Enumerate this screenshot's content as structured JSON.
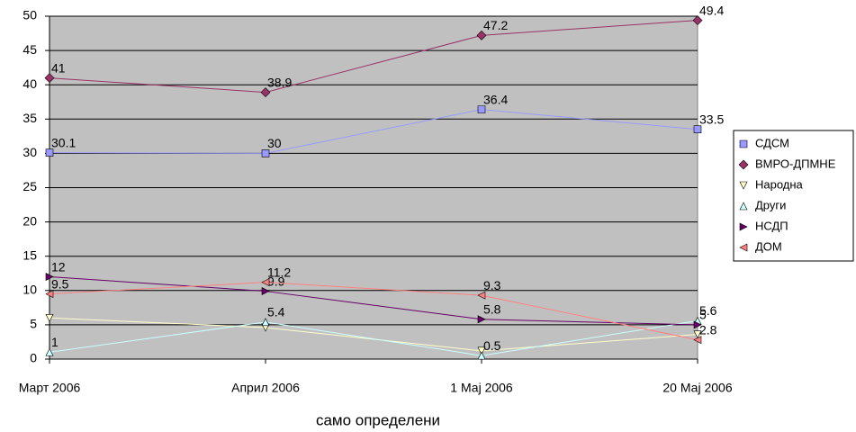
{
  "chart_data": {
    "type": "line",
    "x_label": "само определени",
    "categories": [
      "Март 2006",
      "Април 2006",
      "1 Мај 2006",
      "20 Мај 2006"
    ],
    "ylim": [
      0,
      50
    ],
    "yticks": [
      0,
      5,
      10,
      15,
      20,
      25,
      30,
      35,
      40,
      45,
      50
    ],
    "grid": true,
    "plot_background": "#c0c0c0",
    "legend": "right",
    "series": [
      {
        "name": "СДСМ",
        "color": "#9999ff",
        "marker": "square",
        "show_labels": true,
        "values": [
          30.1,
          30,
          36.4,
          33.5
        ]
      },
      {
        "name": "ВМРО-ДПМНЕ",
        "color": "#993366",
        "marker": "diamond",
        "show_labels": true,
        "values": [
          41,
          38.9,
          47.2,
          49.4
        ]
      },
      {
        "name": "Народна",
        "color": "#ffffcc",
        "marker": "triangle-down",
        "show_labels": false,
        "values": [
          6,
          4.6,
          1.2,
          3.6
        ]
      },
      {
        "name": "Други",
        "color": "#ccffff",
        "marker": "triangle-up",
        "show_labels": true,
        "values": [
          1,
          5.4,
          0.5,
          5.6
        ]
      },
      {
        "name": "НСДП",
        "color": "#660066",
        "marker": "triangle-right",
        "show_labels": true,
        "values": [
          12,
          9.9,
          5.8,
          5
        ]
      },
      {
        "name": "ДОМ",
        "color": "#ff8080",
        "marker": "triangle-left",
        "show_labels": true,
        "values": [
          9.5,
          11.2,
          9.3,
          2.8
        ]
      }
    ]
  }
}
